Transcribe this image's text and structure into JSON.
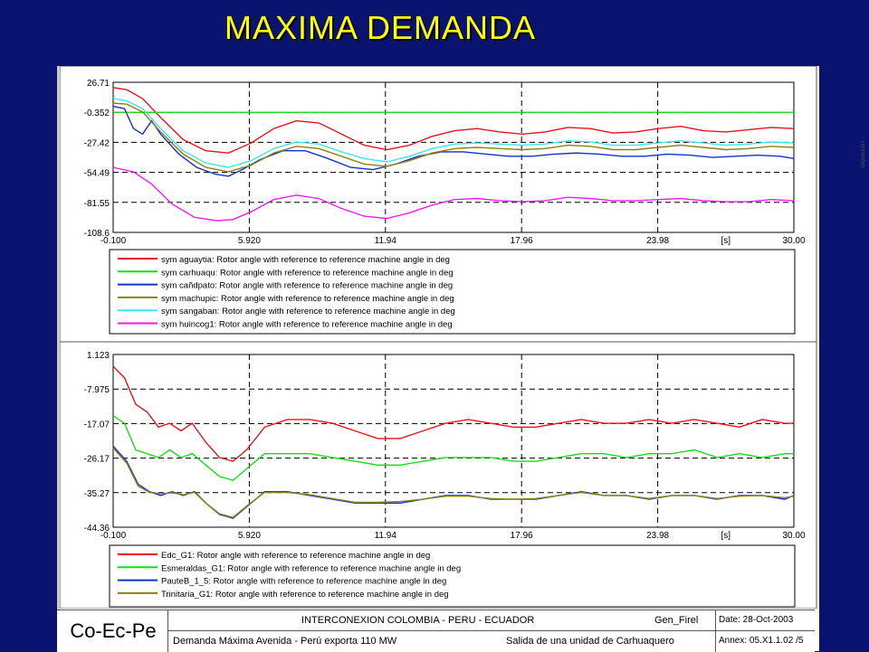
{
  "slide_title": "MAXIMA DEMANDA",
  "watermark": "DIgSILENT",
  "footer": {
    "logo": "Co-Ec-Pe",
    "title": "INTERCONEXION COLOMBIA - PERU - ECUADOR",
    "project": "Gen_Firel",
    "subtitle": "Demanda Máxima Avenida - Perú exporta 110 MW",
    "case": "Salida de una unidad de Carhuaquero",
    "date": "Date:  28-Oct-2003",
    "annex": "Annex: 05.X1.1.02 /5"
  },
  "colors": {
    "background": "#0a1470",
    "title": "#ffff00",
    "red": "#e8141e",
    "green": "#19dc19",
    "blue": "#1432c8",
    "olive": "#8c8214",
    "cyan": "#3ce6f0",
    "magenta": "#f01ef0"
  },
  "chart_data": [
    {
      "type": "line",
      "xlabel": "[s]",
      "xlim": [
        -0.1,
        30.0
      ],
      "ylim": [
        -108.6,
        26.71
      ],
      "x_ticks": [
        "-0.100",
        "5.920",
        "11.94",
        "17.96",
        "23.98",
        "[s]",
        "30.00"
      ],
      "y_ticks": [
        "26.71",
        "-0.352",
        "-27.42",
        "-54.49",
        "-81.55",
        "-108.6"
      ],
      "grid": true,
      "legend_position": "bottom",
      "series": [
        {
          "name": "sym aguaytia: Rotor angle with reference to reference machine angle in deg",
          "color": "red",
          "x": [
            -0.1,
            0.5,
            1.2,
            2.0,
            3.0,
            4.0,
            5.0,
            6.0,
            7.0,
            8.0,
            9.0,
            10.0,
            11.0,
            12.0,
            13.0,
            14.0,
            15.0,
            16.0,
            17.0,
            18.0,
            19.0,
            20.0,
            21.0,
            22.0,
            23.0,
            24.0,
            25.0,
            26.0,
            27.0,
            28.0,
            29.0,
            30.0
          ],
          "y": [
            22,
            20,
            12,
            -5,
            -25,
            -35,
            -37,
            -28,
            -15,
            -8,
            -10,
            -20,
            -30,
            -34,
            -30,
            -22,
            -17,
            -15,
            -18,
            -20,
            -18,
            -14,
            -15,
            -19,
            -18,
            -15,
            -13,
            -17,
            -18,
            -16,
            -14,
            -15
          ]
        },
        {
          "name": "sym carhuaqu: Rotor angle with reference to reference machine angle in deg",
          "color": "green",
          "x": [
            -0.1,
            30.0
          ],
          "y": [
            -0.352,
            -0.352
          ]
        },
        {
          "name": "sym cañdpato: Rotor angle with reference to reference machine angle in deg",
          "color": "blue",
          "x": [
            -0.1,
            0.4,
            0.8,
            1.2,
            1.6,
            2.0,
            2.8,
            3.6,
            4.4,
            5.0,
            5.6,
            6.4,
            7.4,
            8.4,
            9.4,
            10.4,
            11.4,
            12.4,
            13.4,
            14.4,
            15.4,
            16.4,
            17.4,
            18.4,
            19.4,
            20.4,
            21.4,
            22.4,
            23.4,
            24.4,
            25.4,
            26.4,
            27.4,
            28.4,
            29.4,
            30.0
          ],
          "y": [
            5,
            3,
            -15,
            -20,
            -8,
            -20,
            -38,
            -50,
            -56,
            -58,
            -52,
            -43,
            -35,
            -35,
            -42,
            -50,
            -52,
            -47,
            -40,
            -36,
            -36,
            -38,
            -40,
            -40,
            -38,
            -37,
            -38,
            -40,
            -40,
            -38,
            -39,
            -41,
            -40,
            -39,
            -40,
            -42
          ]
        },
        {
          "name": "sym machupic: Rotor angle with reference to reference machine angle in deg",
          "color": "olive",
          "x": [
            -0.1,
            0.5,
            1.2,
            2.0,
            3.0,
            4.0,
            5.0,
            6.0,
            7.0,
            8.0,
            9.0,
            10.0,
            11.0,
            12.0,
            13.0,
            14.0,
            15.0,
            16.0,
            17.0,
            18.0,
            19.0,
            20.0,
            21.0,
            22.0,
            23.0,
            24.0,
            25.0,
            26.0,
            27.0,
            28.0,
            29.0,
            30.0
          ],
          "y": [
            8,
            7,
            0,
            -18,
            -38,
            -50,
            -54,
            -48,
            -37,
            -31,
            -33,
            -40,
            -47,
            -49,
            -44,
            -37,
            -33,
            -32,
            -33,
            -34,
            -33,
            -30,
            -31,
            -34,
            -34,
            -32,
            -30,
            -32,
            -34,
            -33,
            -31,
            -32
          ]
        },
        {
          "name": "sym sangaban: Rotor angle with reference to reference machine angle in deg",
          "color": "cyan",
          "x": [
            -0.1,
            0.5,
            1.2,
            2.0,
            3.0,
            4.0,
            5.0,
            6.0,
            7.0,
            8.0,
            9.0,
            10.0,
            11.0,
            12.0,
            13.0,
            14.0,
            15.0,
            16.0,
            17.0,
            18.0,
            19.0,
            20.0,
            21.0,
            22.0,
            23.0,
            24.0,
            25.0,
            26.0,
            27.0,
            28.0,
            29.0,
            30.0
          ],
          "y": [
            12,
            10,
            3,
            -15,
            -35,
            -46,
            -50,
            -44,
            -33,
            -27,
            -29,
            -36,
            -42,
            -45,
            -40,
            -33,
            -29,
            -28,
            -29,
            -30,
            -29,
            -26,
            -27,
            -30,
            -30,
            -28,
            -26,
            -28,
            -30,
            -29,
            -27,
            -28
          ]
        },
        {
          "name": "sym huincog1: Rotor angle with reference to reference machine angle in deg",
          "color": "magenta",
          "x": [
            -0.1,
            0.8,
            1.6,
            2.5,
            3.5,
            4.5,
            5.2,
            6.0,
            7.0,
            8.0,
            9.0,
            10.0,
            11.0,
            12.0,
            13.0,
            14.0,
            15.0,
            16.0,
            17.0,
            18.0,
            19.0,
            20.0,
            21.0,
            22.0,
            23.0,
            24.0,
            25.0,
            26.0,
            27.0,
            28.0,
            29.0,
            30.0
          ],
          "y": [
            -50,
            -54,
            -65,
            -83,
            -95,
            -98,
            -97,
            -90,
            -79,
            -75,
            -78,
            -87,
            -94,
            -96,
            -91,
            -84,
            -79,
            -78,
            -80,
            -81,
            -80,
            -77,
            -78,
            -80,
            -80,
            -79,
            -78,
            -80,
            -81,
            -81,
            -79,
            -80
          ]
        }
      ]
    },
    {
      "type": "line",
      "xlabel": "[s]",
      "xlim": [
        -0.1,
        30.0
      ],
      "ylim": [
        -44.36,
        1.123
      ],
      "x_ticks": [
        "-0.100",
        "5.920",
        "11.94",
        "17.96",
        "23.98",
        "[s]",
        "30.00"
      ],
      "y_ticks": [
        "1.123",
        "-7.975",
        "-17.07",
        "-26.17",
        "-35.27",
        "-44.36"
      ],
      "grid": true,
      "legend_position": "bottom",
      "series": [
        {
          "name": "Edc_G1: Rotor angle with reference to reference machine angle in deg",
          "color": "red",
          "x": [
            -0.1,
            0.4,
            0.9,
            1.4,
            1.9,
            2.4,
            2.9,
            3.4,
            4.0,
            4.6,
            5.2,
            5.8,
            6.6,
            7.6,
            8.6,
            9.6,
            10.6,
            11.6,
            12.6,
            13.6,
            14.6,
            15.6,
            16.6,
            17.6,
            18.6,
            19.6,
            20.6,
            21.6,
            22.6,
            23.6,
            24.6,
            25.6,
            26.6,
            27.6,
            28.6,
            29.6,
            30.0
          ],
          "y": [
            -2,
            -5,
            -12,
            -14,
            -18,
            -17,
            -19,
            -17,
            -22,
            -26,
            -27,
            -24,
            -18,
            -16,
            -16,
            -17,
            -19,
            -21,
            -21,
            -19,
            -17,
            -16,
            -17,
            -18,
            -18,
            -17,
            -16,
            -17,
            -17,
            -16,
            -17,
            -16,
            -17,
            -18,
            -16,
            -17,
            -17
          ]
        },
        {
          "name": "Esmeraldas_G1: Rotor angle with reference to reference machine angle in deg",
          "color": "green",
          "x": [
            -0.1,
            0.4,
            0.9,
            1.4,
            1.9,
            2.4,
            2.9,
            3.4,
            4.0,
            4.6,
            5.2,
            5.8,
            6.6,
            7.6,
            8.6,
            9.6,
            10.6,
            11.6,
            12.6,
            13.6,
            14.6,
            15.6,
            16.6,
            17.6,
            18.6,
            19.6,
            20.6,
            21.6,
            22.6,
            23.6,
            24.6,
            25.6,
            26.6,
            27.6,
            28.6,
            29.6,
            30.0
          ],
          "y": [
            -15,
            -17,
            -24,
            -25,
            -26,
            -24,
            -26,
            -25,
            -28,
            -31,
            -32,
            -29,
            -25,
            -25,
            -25,
            -26,
            -27,
            -28,
            -28,
            -27,
            -26,
            -26,
            -26,
            -27,
            -27,
            -26,
            -25,
            -25,
            -26,
            -25,
            -25,
            -24,
            -26,
            -25,
            -26,
            -25,
            -25
          ]
        },
        {
          "name": "PauteB_1_5: Rotor angle with reference to reference machine angle in deg",
          "color": "blue",
          "x": [
            -0.1,
            0.5,
            1.0,
            1.5,
            2.0,
            2.5,
            3.0,
            3.5,
            4.0,
            4.6,
            5.2,
            5.8,
            6.6,
            7.6,
            8.6,
            9.6,
            10.6,
            11.6,
            12.6,
            13.6,
            14.6,
            15.6,
            16.6,
            17.6,
            18.6,
            19.6,
            20.6,
            21.6,
            22.6,
            23.6,
            24.6,
            25.6,
            26.6,
            27.6,
            28.6,
            29.6,
            30.0
          ],
          "y": [
            -23,
            -27,
            -33,
            -35,
            -36,
            -35,
            -36,
            -35,
            -38,
            -41,
            -42,
            -39,
            -35,
            -35,
            -36,
            -37,
            -38,
            -38,
            -38,
            -37,
            -36,
            -36,
            -37,
            -37,
            -37,
            -36,
            -35,
            -36,
            -36,
            -37,
            -36,
            -36,
            -37,
            -36,
            -36,
            -37,
            -36
          ]
        },
        {
          "name": "Trinitaria_G1: Rotor angle with reference to reference machine angle in deg",
          "color": "olive",
          "x": [
            -0.1,
            0.5,
            1.0,
            1.5,
            2.0,
            2.5,
            3.0,
            3.5,
            4.0,
            4.6,
            5.2,
            5.8,
            6.6,
            7.6,
            8.6,
            9.6,
            10.6,
            11.6,
            12.6,
            13.6,
            14.6,
            15.6,
            16.6,
            17.6,
            18.6,
            19.6,
            20.6,
            21.6,
            22.6,
            23.6,
            24.6,
            25.6,
            26.6,
            27.6,
            28.6,
            29.6,
            30.0
          ],
          "y": [
            -23.5,
            -27.5,
            -33.5,
            -35.2,
            -35.5,
            -35.3,
            -35.8,
            -35.2,
            -38,
            -40.8,
            -41.8,
            -38.8,
            -35.2,
            -35.2,
            -35.8,
            -36.8,
            -37.8,
            -37.8,
            -37.6,
            -37,
            -36.2,
            -36.2,
            -36.8,
            -37,
            -36.8,
            -36,
            -35.2,
            -36,
            -36,
            -36.8,
            -36,
            -36,
            -36.8,
            -36.2,
            -36,
            -36.6,
            -36.2
          ]
        }
      ]
    }
  ]
}
